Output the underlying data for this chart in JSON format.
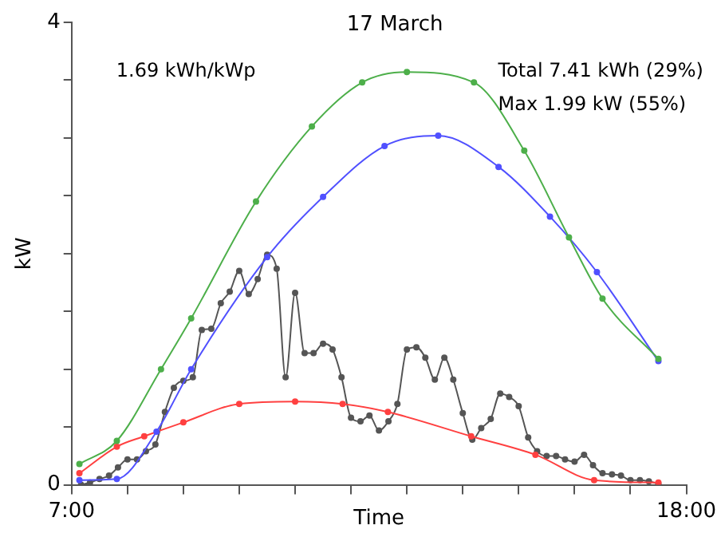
{
  "chart_data": {
    "type": "line",
    "title": "17 March",
    "xlabel": "Time",
    "ylabel": "kW",
    "annotations": [
      "1.69 kWh/kWp",
      "Total 7.41 kWh (29%)",
      "Max 1.99 kW (55%)"
    ],
    "xlim": [
      7,
      18
    ],
    "ylim": [
      0,
      4
    ],
    "xticks": [
      {
        "value": 7,
        "label": "7:00"
      },
      {
        "value": 8,
        "label": null
      },
      {
        "value": 9,
        "label": null
      },
      {
        "value": 10,
        "label": null
      },
      {
        "value": 11,
        "label": null
      },
      {
        "value": 12,
        "label": null
      },
      {
        "value": 13,
        "label": null
      },
      {
        "value": 14,
        "label": null
      },
      {
        "value": 15,
        "label": null
      },
      {
        "value": 16,
        "label": null
      },
      {
        "value": 17,
        "label": null
      },
      {
        "value": 18,
        "label": "18:00"
      }
    ],
    "yticks": [
      0,
      {
        "value": 0.5,
        "label": null
      },
      {
        "value": 1,
        "label": null
      },
      {
        "value": 1.5,
        "label": null
      },
      {
        "value": 2,
        "label": null
      },
      {
        "value": 2.5,
        "label": null
      },
      {
        "value": 3,
        "label": null
      },
      {
        "value": 3.5,
        "label": null
      },
      4
    ],
    "marker": "circle",
    "line_style": "solid",
    "grid": false,
    "legend": false,
    "series": [
      {
        "color": "#4daf4a",
        "x": [
          7.14,
          7.81,
          8.6,
          9.14,
          10.3,
          11.3,
          12.2,
          13.0,
          14.2,
          15.1,
          15.9,
          16.5,
          17.5
        ],
        "values": [
          0.18,
          0.38,
          1.0,
          1.44,
          2.45,
          3.1,
          3.48,
          3.57,
          3.48,
          2.89,
          2.14,
          1.61,
          1.09
        ]
      },
      {
        "color": "#5050ff",
        "x": [
          7.14,
          7.81,
          8.52,
          9.14,
          10.5,
          11.5,
          12.6,
          13.56,
          14.64,
          15.56,
          16.4,
          17.5
        ],
        "values": [
          0.04,
          0.05,
          0.46,
          1.0,
          1.97,
          2.49,
          2.93,
          3.02,
          2.75,
          2.32,
          1.84,
          1.07
        ]
      },
      {
        "color": "#ff4040",
        "x": [
          7.14,
          7.81,
          8.3,
          9.0,
          10.0,
          11.0,
          11.85,
          12.66,
          14.15,
          15.3,
          16.35,
          17.5
        ],
        "values": [
          0.1,
          0.33,
          0.42,
          0.54,
          0.7,
          0.72,
          0.7,
          0.63,
          0.42,
          0.26,
          0.04,
          0.02
        ]
      },
      {
        "color": "#555555",
        "x": [
          7.17,
          7.33,
          7.5,
          7.67,
          7.83,
          8.0,
          8.17,
          8.33,
          8.5,
          8.67,
          8.83,
          9.0,
          9.17,
          9.33,
          9.5,
          9.67,
          9.83,
          10.0,
          10.17,
          10.33,
          10.5,
          10.67,
          10.83,
          11.0,
          11.17,
          11.33,
          11.5,
          11.67,
          11.83,
          12.0,
          12.17,
          12.33,
          12.5,
          12.67,
          12.83,
          13.0,
          13.17,
          13.33,
          13.5,
          13.67,
          13.83,
          14.0,
          14.17,
          14.33,
          14.5,
          14.67,
          14.83,
          15.0,
          15.17,
          15.33,
          15.5,
          15.67,
          15.83,
          16.0,
          16.17,
          16.33,
          16.5,
          16.67,
          16.83,
          17.0,
          17.17,
          17.33,
          17.5
        ],
        "values": [
          0.0,
          0.02,
          0.05,
          0.08,
          0.15,
          0.22,
          0.22,
          0.29,
          0.35,
          0.63,
          0.84,
          0.9,
          0.93,
          1.34,
          1.35,
          1.57,
          1.67,
          1.85,
          1.65,
          1.78,
          1.99,
          1.87,
          0.93,
          1.66,
          1.14,
          1.14,
          1.22,
          1.17,
          0.93,
          0.58,
          0.55,
          0.6,
          0.47,
          0.55,
          0.7,
          1.17,
          1.19,
          1.1,
          0.91,
          1.1,
          0.91,
          0.62,
          0.39,
          0.49,
          0.57,
          0.79,
          0.76,
          0.68,
          0.41,
          0.29,
          0.25,
          0.25,
          0.22,
          0.2,
          0.26,
          0.17,
          0.1,
          0.09,
          0.08,
          0.04,
          0.04,
          0.03,
          0.01
        ]
      }
    ]
  }
}
